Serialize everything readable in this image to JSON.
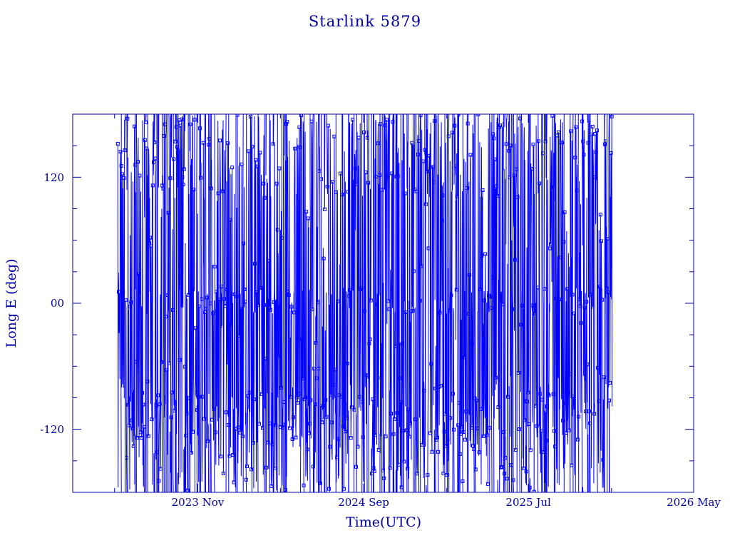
{
  "chart_data": {
    "type": "line",
    "title": "Starlink 5879",
    "xlabel": "Time(UTC)",
    "ylabel": "Long E (deg)",
    "x_tick_labels": [
      "2023 Nov",
      "2024 Sep",
      "2025 Jul",
      "2026 May"
    ],
    "y_tick_labels": [
      "-120",
      "00",
      "120"
    ],
    "xlim": [
      "2023-03-16",
      "2026-05-01"
    ],
    "ylim": [
      -180,
      180
    ],
    "series_start": "2023-06-07",
    "series_end": "2025-12-02",
    "marker": "square",
    "grid": false,
    "colors": {
      "line": "#0000ff",
      "axes": "#0000a0",
      "background": "#ffffff"
    }
  }
}
